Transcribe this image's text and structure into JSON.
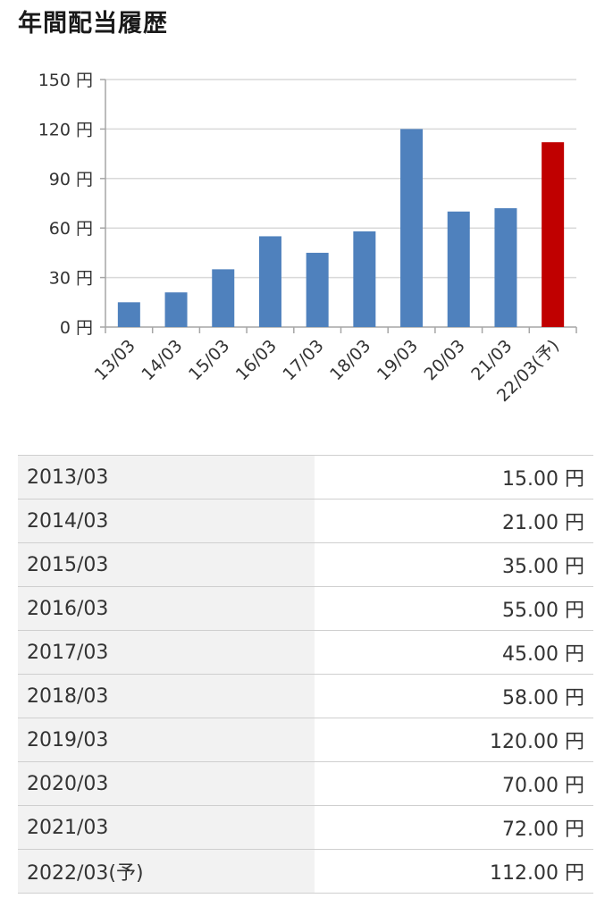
{
  "page_title": "年間配当履歴",
  "chart_data": {
    "type": "bar",
    "title": "",
    "xlabel": "",
    "ylabel": "",
    "unit": "円",
    "ylim": [
      0,
      150
    ],
    "yticks": [
      0,
      30,
      60,
      90,
      120,
      150
    ],
    "ytick_labels": [
      "0 円",
      "30 円",
      "60 円",
      "90 円",
      "120 円",
      "150 円"
    ],
    "categories": [
      "13/03",
      "14/03",
      "15/03",
      "16/03",
      "17/03",
      "18/03",
      "19/03",
      "20/03",
      "21/03",
      "22/03(予)"
    ],
    "values": [
      15,
      21,
      35,
      55,
      45,
      58,
      120,
      70,
      72,
      112
    ],
    "grid": true,
    "colors": {
      "actual": "#4f81bd",
      "forecast": "#c00000",
      "grid": "#d9d9d9",
      "axis": "#a6a6a6"
    },
    "forecast_index": 9
  },
  "table": {
    "rows": [
      {
        "year": "2013/03",
        "amount": "15.00 円"
      },
      {
        "year": "2014/03",
        "amount": "21.00 円"
      },
      {
        "year": "2015/03",
        "amount": "35.00 円"
      },
      {
        "year": "2016/03",
        "amount": "55.00 円"
      },
      {
        "year": "2017/03",
        "amount": "45.00 円"
      },
      {
        "year": "2018/03",
        "amount": "58.00 円"
      },
      {
        "year": "2019/03",
        "amount": "120.00 円"
      },
      {
        "year": "2020/03",
        "amount": "70.00 円"
      },
      {
        "year": "2021/03",
        "amount": "72.00 円"
      },
      {
        "year": "2022/03(予)",
        "amount": "112.00 円"
      }
    ]
  }
}
